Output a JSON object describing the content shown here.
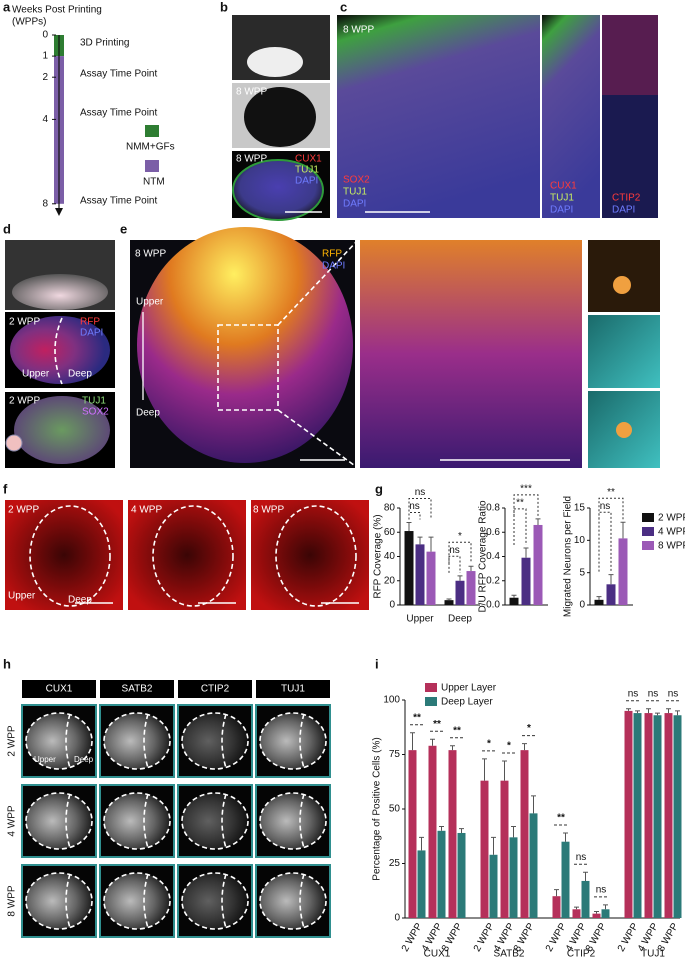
{
  "panel_labels": [
    "a",
    "b",
    "c",
    "d",
    "e",
    "f",
    "g",
    "h",
    "i"
  ],
  "panel_a": {
    "title": [
      "Weeks Post Printing",
      "(WPPs)"
    ],
    "ticks": [
      0,
      1,
      2,
      4,
      8
    ],
    "events": [
      "3D Printing",
      "Assay Time Point",
      "Assay Time Point",
      "Assay Time Point"
    ],
    "legend": [
      {
        "name": "NMM+GFs",
        "color": "#2e7d32"
      },
      {
        "name": "NTM",
        "color": "#7b5ea7"
      }
    ]
  },
  "panel_b": {
    "stage_1": "8 WPP",
    "stage_2": "8 WPP",
    "stains": [
      "CUX1",
      "TUJ1",
      "DAPI"
    ]
  },
  "panel_c": {
    "stage": "8 WPP",
    "stains_1": [
      "SOX2",
      "TUJ1",
      "DAPI"
    ],
    "stains_2": [
      "CUX1",
      "TUJ1",
      "DAPI"
    ],
    "stains_3": [
      "CTIP2",
      "DAPI"
    ]
  },
  "panel_d": {
    "stage_1": "2 WPP",
    "stains_1": [
      "RFP",
      "DAPI"
    ],
    "regions": [
      "Upper",
      "Deep"
    ],
    "stage_2": "2 WPP",
    "stains_2": [
      "TUJ1",
      "SOX2"
    ]
  },
  "panel_e": {
    "stage": "8 WPP",
    "stains": [
      "RFP",
      "DAPI"
    ],
    "regions": [
      "Upper",
      "Deep"
    ]
  },
  "panel_f": {
    "stages": [
      "2 WPP",
      "4 WPP",
      "8 WPP"
    ],
    "regions": [
      "Upper",
      "Deep"
    ]
  },
  "panel_h": {
    "markers": [
      "CUX1",
      "SATB2",
      "CTIP2",
      "TUJ1"
    ],
    "stages": [
      "2 WPP",
      "4 WPP",
      "8 WPP"
    ],
    "regions": [
      "Upper",
      "Deep"
    ]
  },
  "chart_data": [
    {
      "type": "bar",
      "y_label": "RFP Coverage (%)",
      "categories": [
        "Upper",
        "Deep"
      ],
      "series": [
        {
          "color": "#111111",
          "values": [
            61,
            4
          ],
          "errors": [
            7,
            1
          ]
        },
        {
          "color": "#4b2e83",
          "values": [
            50,
            20
          ],
          "errors": [
            6,
            4
          ]
        },
        {
          "color": "#9b59b6",
          "values": [
            44,
            28
          ],
          "errors": [
            12,
            4
          ]
        }
      ],
      "significance": [
        [
          "ns",
          "ns"
        ],
        [
          "ns",
          "*"
        ]
      ],
      "ylim": [
        0,
        80
      ],
      "yticks": [
        0,
        20,
        40,
        60,
        80
      ]
    },
    {
      "type": "bar",
      "y_label": "D/U RFP Coverage Ratio",
      "categories": [
        null
      ],
      "series": [
        {
          "color": "#111111",
          "values": [
            0.06
          ],
          "errors": [
            0.02
          ]
        },
        {
          "color": "#4b2e83",
          "values": [
            0.39
          ],
          "errors": [
            0.08
          ]
        },
        {
          "color": "#9b59b6",
          "values": [
            0.66
          ],
          "errors": [
            0.05
          ]
        }
      ],
      "significance": [
        [
          "**",
          "***"
        ]
      ],
      "ylim": [
        0,
        0.8
      ],
      "yticks": [
        {
          "value": 0,
          "label": "0.0"
        },
        0.2,
        0.4,
        0.6,
        0.8
      ]
    },
    {
      "type": "bar",
      "y_label": "Migrated Neurons per Field",
      "categories": [
        null
      ],
      "series": [
        {
          "name": "2 WPP",
          "color": "#111111",
          "values": [
            0.8
          ],
          "errors": [
            0.5
          ]
        },
        {
          "name": "4 WPP",
          "color": "#4b2e83",
          "values": [
            3.2
          ],
          "errors": [
            1.5
          ]
        },
        {
          "name": "8 WPP",
          "color": "#9b59b6",
          "values": [
            10.3
          ],
          "errors": [
            2.5
          ]
        }
      ],
      "significance": [
        [
          "ns",
          "**"
        ]
      ],
      "ylim": [
        0,
        15
      ],
      "yticks": [
        0,
        5,
        10,
        15
      ],
      "legend": "right"
    },
    {
      "type": "grouped-bar",
      "y_label": "Percentage of Positive Cells (%)",
      "groups": [
        "CUX1",
        "SATB2",
        "CTIP2",
        "TUJ1"
      ],
      "categories": [
        "2 WPP",
        "4 WPP",
        "8 WPP",
        "2 WPP",
        "4 WPP",
        "8 WPP",
        "2 WPP",
        "4 WPP",
        "8 WPP",
        "2 WPP",
        "4 WPP",
        "8 WPP"
      ],
      "series": [
        {
          "name": "Upper Layer",
          "color": "#b5305a",
          "values": [
            77,
            79,
            77,
            63,
            63,
            77,
            10,
            4,
            2,
            95,
            94,
            94
          ],
          "errors": [
            8,
            3,
            2,
            10,
            9,
            3,
            3,
            1,
            1,
            1,
            2,
            2
          ]
        },
        {
          "name": "Deep Layer",
          "color": "#2b7a78",
          "values": [
            31,
            40,
            39,
            29,
            37,
            48,
            35,
            17,
            4,
            94,
            93,
            93
          ],
          "errors": [
            6,
            2,
            2,
            8,
            5,
            8,
            4,
            4,
            2,
            1,
            1,
            2
          ]
        }
      ],
      "significance": [
        "**",
        "**",
        "**",
        "*",
        "*",
        "*",
        "**",
        "ns",
        "ns",
        "ns",
        "ns",
        "ns"
      ],
      "ylim": [
        0,
        100
      ],
      "yticks": [
        0,
        25,
        50,
        75,
        100
      ],
      "legend": "upper left"
    }
  ]
}
